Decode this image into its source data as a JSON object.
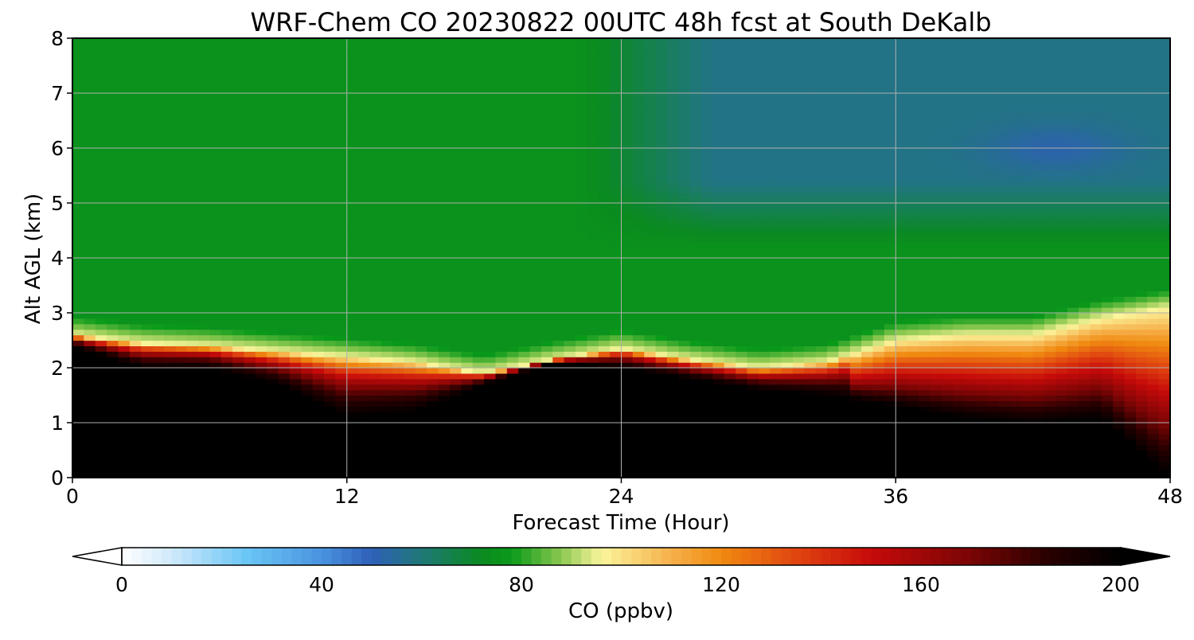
{
  "chart_data": {
    "type": "heatmap",
    "title": "WRF-Chem CO  20230822 00UTC 48h fcst at South DeKalb",
    "xlabel": "Forecast Time (Hour)",
    "ylabel": "Alt AGL (km)",
    "xlim": [
      0,
      48
    ],
    "ylim": [
      0,
      8
    ],
    "xticks": [
      0,
      12,
      24,
      36,
      48
    ],
    "yticks": [
      0,
      1,
      2,
      3,
      4,
      5,
      6,
      7,
      8
    ],
    "grid": true,
    "colorbar": {
      "label": "CO  (ppbv)",
      "range": [
        0,
        200
      ],
      "ticks": [
        0,
        40,
        80,
        120,
        160,
        200
      ],
      "extend": "both",
      "stops": [
        {
          "v": 0,
          "c": "#ffffff"
        },
        {
          "v": 10,
          "c": "#cfe9fb"
        },
        {
          "v": 25,
          "c": "#6ac6f5"
        },
        {
          "v": 40,
          "c": "#4a93e0"
        },
        {
          "v": 50,
          "c": "#2f5fb8"
        },
        {
          "v": 60,
          "c": "#1f7878"
        },
        {
          "v": 72,
          "c": "#0a8a1f"
        },
        {
          "v": 78,
          "c": "#0a9a1a"
        },
        {
          "v": 88,
          "c": "#8cc850"
        },
        {
          "v": 96,
          "c": "#fbf59c"
        },
        {
          "v": 110,
          "c": "#f6b04a"
        },
        {
          "v": 120,
          "c": "#f08a10"
        },
        {
          "v": 135,
          "c": "#e04510"
        },
        {
          "v": 150,
          "c": "#c60a0a"
        },
        {
          "v": 170,
          "c": "#7a0505"
        },
        {
          "v": 185,
          "c": "#2a0000"
        },
        {
          "v": 200,
          "c": "#000000"
        }
      ]
    },
    "boundary_layer_top_km": {
      "x": [
        0,
        3,
        6,
        9,
        12,
        15,
        18,
        21,
        24,
        27,
        30,
        33,
        36,
        39,
        42,
        45,
        48
      ],
      "y": [
        2.6,
        2.45,
        2.4,
        2.3,
        2.2,
        2.1,
        1.9,
        2.15,
        2.35,
        2.15,
        2.0,
        2.1,
        2.5,
        2.6,
        2.6,
        2.9,
        3.1
      ]
    },
    "saturated_core_top_km": {
      "x": [
        0,
        3,
        6,
        9,
        12,
        15,
        18,
        21,
        24,
        27,
        30,
        33,
        36,
        39,
        42,
        45,
        48
      ],
      "y": [
        2.4,
        2.0,
        2.0,
        1.7,
        1.1,
        1.2,
        1.7,
        2.1,
        2.0,
        1.8,
        1.6,
        1.5,
        1.3,
        1.1,
        1.0,
        1.1,
        0.0
      ]
    },
    "surface_layer_value_ppbv": 200,
    "free_troposphere_value_ppbv": {
      "low": 75,
      "blue_region_max": 58,
      "blue_region_min": 52
    }
  }
}
